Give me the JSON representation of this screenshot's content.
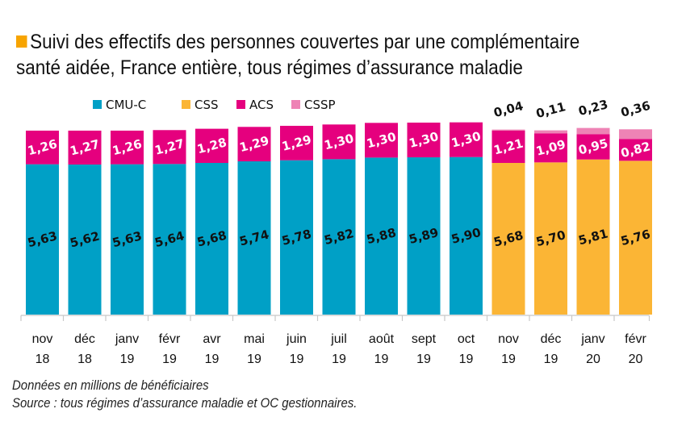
{
  "header": {
    "title_line1": "Suivi des effectifs des personnes couvertes par une complémentaire",
    "title_line2": "santé aidée, France entière, tous régimes d’assurance maladie",
    "marker_color": "#f7a400"
  },
  "notes": {
    "unit": "Données en millions de bénéficiaires",
    "source": "Source : tous régimes d’assurance maladie et OC gestionnaires."
  },
  "chart_data": {
    "type": "bar",
    "stacked": true,
    "title": "Suivi des effectifs des personnes couvertes par une complémentaire santé aidée, France entière, tous régimes d’assurance maladie",
    "xlabel": "",
    "ylabel": "",
    "unit": "millions de bénéficiaires",
    "legend_position": "top",
    "grid": false,
    "ylim": [
      0,
      7.3
    ],
    "categories": [
      [
        "nov",
        "18"
      ],
      [
        "déc",
        "18"
      ],
      [
        "janv",
        "19"
      ],
      [
        "févr",
        "19"
      ],
      [
        "avr",
        "19"
      ],
      [
        "mai",
        "19"
      ],
      [
        "juin",
        "19"
      ],
      [
        "juil",
        "19"
      ],
      [
        "août",
        "19"
      ],
      [
        "sept",
        "19"
      ],
      [
        "oct",
        "19"
      ],
      [
        "nov",
        "19"
      ],
      [
        "déc",
        "19"
      ],
      [
        "janv",
        "20"
      ],
      [
        "févr",
        "20"
      ]
    ],
    "series": [
      {
        "name": "CMU-C",
        "color": "#00a0c6",
        "label_color": "#111111",
        "values": [
          5.63,
          5.62,
          5.63,
          5.64,
          5.68,
          5.74,
          5.78,
          5.82,
          5.88,
          5.89,
          5.9,
          null,
          null,
          null,
          null
        ],
        "labels": [
          "5,63",
          "5,62",
          "5,63",
          "5,64",
          "5,68",
          "5,74",
          "5,78",
          "5,82",
          "5,88",
          "5,89",
          "5,90",
          null,
          null,
          null,
          null
        ]
      },
      {
        "name": "CSS",
        "color": "#fbb535",
        "label_color": "#111111",
        "values": [
          null,
          null,
          null,
          null,
          null,
          null,
          null,
          null,
          null,
          null,
          null,
          5.68,
          5.7,
          5.81,
          5.76
        ],
        "labels": [
          null,
          null,
          null,
          null,
          null,
          null,
          null,
          null,
          null,
          null,
          null,
          "5,68",
          "5,70",
          "5,81",
          "5,76"
        ]
      },
      {
        "name": "ACS",
        "color": "#e5007e",
        "label_color": "#ffffff",
        "values": [
          1.26,
          1.27,
          1.26,
          1.27,
          1.28,
          1.29,
          1.29,
          1.3,
          1.3,
          1.3,
          1.3,
          1.21,
          1.09,
          0.95,
          0.82
        ],
        "labels": [
          "1,26",
          "1,27",
          "1,26",
          "1,27",
          "1,28",
          "1,29",
          "1,29",
          "1,30",
          "1,30",
          "1,30",
          "1,30",
          "1,21",
          "1,09",
          "0,95",
          "0,82"
        ]
      },
      {
        "name": "CSSP",
        "color": "#ee83b5",
        "label_color": "#111111",
        "values": [
          null,
          null,
          null,
          null,
          null,
          null,
          null,
          null,
          null,
          null,
          null,
          0.04,
          0.11,
          0.23,
          0.36
        ],
        "labels": [
          null,
          null,
          null,
          null,
          null,
          null,
          null,
          null,
          null,
          null,
          null,
          "0,04",
          "0,11",
          "0,23",
          "0,36"
        ]
      }
    ]
  }
}
